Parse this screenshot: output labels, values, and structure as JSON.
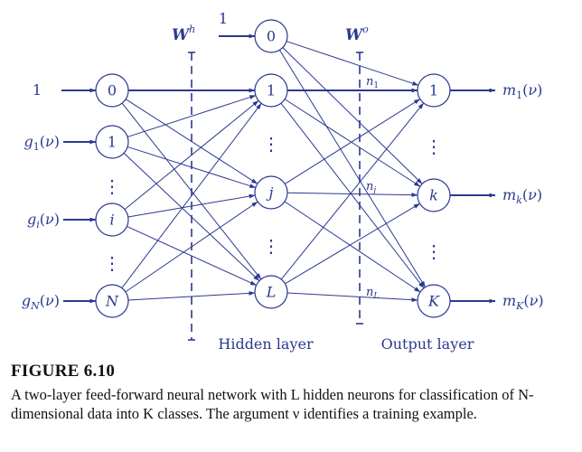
{
  "colors": {
    "ink": "#2b3990",
    "caption": "#111111"
  },
  "inputs": [
    {
      "id": "in0",
      "node": "0",
      "label": "1"
    },
    {
      "id": "in1",
      "node": "1",
      "label": "g1(ν)",
      "base": "g",
      "sub": "1",
      "arg": "(ν)"
    },
    {
      "id": "ini",
      "node": "i",
      "label": "gi(ν)",
      "base": "g",
      "sub": "i",
      "arg": "(ν)"
    },
    {
      "id": "inN",
      "node": "N",
      "label": "gN(ν)",
      "base": "g",
      "sub": "N",
      "arg": "(ν)"
    }
  ],
  "hidden": [
    {
      "id": "h0",
      "node": "0",
      "bias_label": "1"
    },
    {
      "id": "h1",
      "node": "1"
    },
    {
      "id": "hj",
      "node": "j"
    },
    {
      "id": "hL",
      "node": "L"
    }
  ],
  "outputs": [
    {
      "id": "o1",
      "node": "1",
      "net": "n1",
      "net_base": "n",
      "net_sub": "1",
      "label": "m1(ν)",
      "base": "m",
      "sub": "1",
      "arg": "(ν)"
    },
    {
      "id": "ok",
      "node": "k",
      "net": "nj",
      "net_base": "n",
      "net_sub": "j",
      "label": "mk(ν)",
      "base": "m",
      "sub": "k",
      "arg": "(ν)"
    },
    {
      "id": "oK",
      "node": "K",
      "net": "nL",
      "net_base": "n",
      "net_sub": "L",
      "label": "mK(ν)",
      "base": "m",
      "sub": "K",
      "arg": "(ν)"
    }
  ],
  "weights": {
    "hidden": {
      "base": "W",
      "sup": "h"
    },
    "output": {
      "base": "W",
      "sup": "o"
    }
  },
  "layer_labels": {
    "hidden": "Hidden layer",
    "output": "Output layer"
  },
  "ellipsis": "⋮",
  "caption": {
    "title": "FIGURE 6.10",
    "text": "A two-layer feed-forward neural network with L hidden neurons for classification of N-dimensional data into K classes. The argument ν identifies a training example."
  }
}
